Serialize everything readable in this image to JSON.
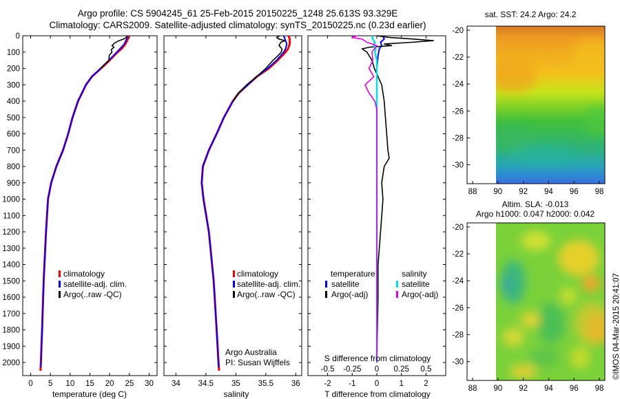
{
  "header": {
    "line1": "Argo profile: CS 5904245_61 25-Feb-2015 20150225_1248 25.613S 93.329E",
    "line2": "Climatology: CARS2009. Satellite-adjusted climatology: synTS_20150225.nc (0.23d earlier)"
  },
  "copyright": "©IMOS 04-Mar-2015 20:41:07",
  "colors": {
    "climatology": "#ff0000",
    "satellite": "#0000ff",
    "argo": "#000000",
    "sal_sat": "#00e0e0",
    "sal_argo": "#e000e0"
  },
  "chart_data": [
    {
      "type": "line",
      "name": "temperature",
      "xlabel": "temperature (deg C)",
      "xlim": [
        -2,
        32
      ],
      "ylim": [
        2080,
        0
      ],
      "xticks": [
        "0",
        "5",
        "10",
        "15",
        "20",
        "25",
        "30"
      ],
      "yticks": [
        "0",
        "100",
        "200",
        "300",
        "400",
        "500",
        "600",
        "700",
        "800",
        "900",
        "1000",
        "1100",
        "1200",
        "1300",
        "1400",
        "1500",
        "1600",
        "1700",
        "1800",
        "1900",
        "2000"
      ],
      "legend": [
        "climatology",
        "satellite-adj. clim.",
        "Argo(..raw -QC)"
      ],
      "series": [
        {
          "name": "climatology",
          "depth": [
            0,
            20,
            50,
            80,
            100,
            150,
            200,
            250,
            300,
            400,
            500,
            600,
            700,
            800,
            900,
            1000,
            1200,
            1500,
            1800,
            2050
          ],
          "values": [
            24.7,
            24.6,
            24.0,
            23.0,
            22.0,
            20.0,
            17.8,
            15.5,
            14.0,
            12.0,
            10.6,
            9.5,
            8.2,
            6.5,
            5.2,
            4.4,
            3.9,
            3.3,
            2.9,
            2.5
          ]
        },
        {
          "name": "satellite-adj. clim.",
          "depth": [
            0,
            20,
            50,
            80,
            100,
            150,
            200,
            250,
            300,
            400,
            500,
            600,
            700,
            800,
            900,
            1000,
            1200,
            1500,
            1800,
            2030
          ],
          "values": [
            24.4,
            24.3,
            23.7,
            22.6,
            21.8,
            19.8,
            17.7,
            15.5,
            14.0,
            12.0,
            10.6,
            9.5,
            8.2,
            6.5,
            5.2,
            4.4,
            3.9,
            3.3,
            2.9,
            2.6
          ]
        },
        {
          "name": "Argo",
          "depth": [
            0,
            10,
            20,
            30,
            45,
            60,
            70,
            85,
            100,
            120,
            150,
            200
          ],
          "values": [
            24.3,
            24.2,
            23.5,
            22.4,
            21.2,
            20.6,
            21.1,
            20.4,
            20.6,
            19.9,
            19.8,
            17.7
          ]
        }
      ]
    },
    {
      "type": "line",
      "name": "salinity",
      "xlabel": "salinity",
      "xlim": [
        33.8,
        36.1
      ],
      "ylim": [
        2080,
        0
      ],
      "xticks": [
        "34",
        "34.5",
        "35",
        "35.5",
        "36"
      ],
      "legend": [
        "climatology",
        "satellite-adj. clim.",
        "Argo(..raw -QC)"
      ],
      "annotation": [
        "Argo Australia",
        "PI: Susan Wijffels"
      ],
      "series": [
        {
          "name": "climatology",
          "depth": [
            0,
            20,
            50,
            80,
            100,
            150,
            200,
            250,
            300,
            350,
            400,
            500,
            600,
            700,
            800,
            900,
            1000,
            1200,
            1500,
            1800,
            2050
          ],
          "values": [
            35.88,
            35.9,
            35.9,
            35.87,
            35.83,
            35.7,
            35.55,
            35.35,
            35.2,
            35.05,
            34.95,
            34.8,
            34.68,
            34.55,
            34.45,
            34.43,
            34.46,
            34.55,
            34.63,
            34.68,
            34.72
          ]
        },
        {
          "name": "satellite-adj. clim.",
          "depth": [
            0,
            20,
            50,
            80,
            100,
            150,
            200,
            250,
            300,
            350,
            400,
            500,
            600,
            700,
            800,
            900,
            1000,
            1200,
            1500,
            1800,
            2030
          ],
          "values": [
            35.8,
            35.82,
            35.85,
            35.83,
            35.8,
            35.68,
            35.53,
            35.35,
            35.2,
            35.05,
            34.95,
            34.8,
            34.68,
            34.55,
            34.45,
            34.43,
            34.46,
            34.55,
            34.63,
            34.68,
            34.71
          ]
        },
        {
          "name": "Argo",
          "depth": [
            0,
            10,
            20,
            30,
            40,
            60,
            80,
            100,
            130,
            150,
            200,
            250,
            300,
            350,
            400
          ],
          "values": [
            35.73,
            35.68,
            35.72,
            35.82,
            35.75,
            35.72,
            35.77,
            35.76,
            35.68,
            35.62,
            35.5,
            35.35,
            35.18,
            35.05,
            34.95
          ]
        }
      ]
    },
    {
      "type": "line",
      "name": "difference",
      "xlabel": "T difference from climatology",
      "xlabel2": "S difference from climatology",
      "xlim": [
        -2.8,
        2.8
      ],
      "ylim": [
        2080,
        0
      ],
      "xticks": [
        "-2",
        "-1",
        "0",
        "1",
        "2"
      ],
      "xticks2": [
        "-0.5",
        "-0.25",
        "0",
        "0.25",
        "0.5"
      ],
      "legend_temperature_title": "temperature",
      "legend_salinity_title": "salinity",
      "legend": [
        "satellite",
        "Argo(-adj)",
        "satellite",
        "Argo(-adj)"
      ],
      "series": [
        {
          "name": "T satellite",
          "depth": [
            0,
            20,
            40,
            60,
            80,
            120,
            200,
            400,
            800,
            1200,
            2000
          ],
          "values": [
            0.25,
            0.3,
            0.15,
            0.2,
            0.1,
            0.05,
            0.0,
            0.0,
            0.0,
            0.0,
            0.0
          ]
        },
        {
          "name": "T Argo",
          "depth": [
            0,
            10,
            20,
            30,
            40,
            50,
            60,
            70,
            80,
            90,
            100,
            150,
            200,
            300,
            400,
            500,
            600,
            700,
            750,
            800,
            900,
            1000,
            1200,
            1400,
            1600,
            2000
          ],
          "values": [
            0.0,
            0.5,
            1.5,
            2.3,
            1.4,
            0.3,
            0.6,
            -0.3,
            -0.6,
            -0.5,
            -0.4,
            -0.2,
            -0.1,
            0.2,
            0.3,
            0.35,
            0.4,
            0.45,
            0.5,
            0.3,
            0.2,
            0.25,
            0.15,
            0.05,
            0.05,
            0.0
          ]
        },
        {
          "name": "S satellite",
          "depth": [
            0,
            20,
            40,
            60,
            80,
            100,
            150,
            200,
            400,
            800,
            1200,
            2000
          ],
          "values": [
            -0.05,
            -0.04,
            -0.02,
            -0.03,
            -0.01,
            -0.02,
            0.0,
            0.0,
            0.0,
            0.0,
            0.0,
            0.0
          ]
        },
        {
          "name": "S Argo",
          "depth": [
            0,
            10,
            20,
            40,
            60,
            100,
            150,
            200,
            250,
            300,
            350,
            400,
            450,
            500,
            600,
            800,
            1000,
            1200,
            1600,
            2000
          ],
          "values": [
            -0.2,
            -0.25,
            -0.15,
            -0.1,
            0.0,
            -0.05,
            -0.04,
            -0.08,
            -0.03,
            -0.12,
            -0.08,
            -0.02,
            0.0,
            0.0,
            0.0,
            0.0,
            0.0,
            0.0,
            0.0,
            0.0
          ]
        }
      ]
    },
    {
      "type": "heatmap",
      "name": "satellite SST map",
      "title": "sat. SST: 24.2  Argo: 24.2",
      "xticks": [
        "88",
        "90",
        "92",
        "94",
        "96",
        "98"
      ],
      "yticks": [
        "-20",
        "-22",
        "-24",
        "-26",
        "-28",
        "-30"
      ]
    },
    {
      "type": "heatmap",
      "name": "altimetry SLA map",
      "title1": "Altim. SLA: -0.013",
      "title2": "Argo h1000: 0.047  h2000: 0.042",
      "xticks": [
        "88",
        "90",
        "92",
        "94",
        "96",
        "98"
      ],
      "yticks": [
        "-20",
        "-22",
        "-24",
        "-26",
        "-28",
        "-30"
      ]
    }
  ]
}
